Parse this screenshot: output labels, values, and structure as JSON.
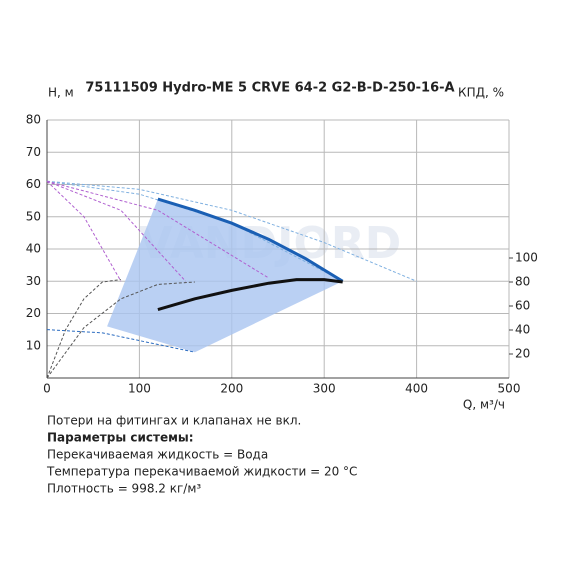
{
  "chart_data": {
    "type": "line",
    "title": "75111509 Hydro-ME 5 CRVE 64-2 G2-B-D-250-16-A",
    "y_label": "H, м",
    "y2_label": "КПД, %",
    "x_label": "Q, м³/ч",
    "watermark": "VANDJORD",
    "xlim": [
      0,
      500
    ],
    "xticks": [
      0,
      100,
      200,
      300,
      400,
      500
    ],
    "ylim": [
      0,
      80
    ],
    "yticks": [
      10,
      20,
      30,
      40,
      50,
      60,
      70,
      80
    ],
    "y2lim": [
      0,
      215
    ],
    "y2ticks": [
      20,
      40,
      60,
      80,
      100
    ],
    "grid": true,
    "area": {
      "color": "#a9c4f0",
      "x": [
        120,
        160,
        200,
        240,
        280,
        320,
        160,
        65
      ],
      "values": [
        55.5,
        52,
        48,
        43,
        37,
        30,
        8,
        16
      ]
    },
    "series": [
      {
        "color": "#7fb0e0",
        "x": [
          0,
          100,
          200,
          300,
          400
        ],
        "values": [
          61,
          58.5,
          52,
          42,
          30
        ]
      },
      {
        "color": "#7fb0e0",
        "x": [
          0,
          100,
          200,
          280,
          320
        ],
        "values": [
          61,
          57,
          48,
          36,
          30
        ]
      },
      {
        "color": "#b060d0",
        "x": [
          0,
          40,
          80
        ],
        "values": [
          61,
          50,
          30
        ]
      },
      {
        "color": "#b060d0",
        "x": [
          0,
          80,
          150
        ],
        "values": [
          61,
          52,
          30
        ]
      },
      {
        "color": "#b060d0",
        "x": [
          0,
          120,
          240
        ],
        "values": [
          61,
          52,
          31
        ]
      },
      {
        "color": "#2a6bc0",
        "x": [
          0,
          60,
          160
        ],
        "values": [
          15,
          14,
          8
        ]
      },
      {
        "color": "#1a5fb4",
        "x": [
          120,
          160,
          200,
          240,
          280,
          320
        ],
        "values": [
          55.5,
          52,
          48,
          43,
          37,
          30
        ]
      },
      {
        "color": "#555555",
        "axis": "y2",
        "x": [
          0,
          20,
          40,
          60,
          80
        ],
        "values": [
          0,
          40,
          66,
          80,
          82
        ]
      },
      {
        "color": "#555555",
        "axis": "y2",
        "x": [
          0,
          40,
          80,
          120,
          160
        ],
        "values": [
          0,
          42,
          66,
          78,
          80
        ]
      },
      {
        "color": "#111111",
        "axis": "y2",
        "x": [
          120,
          160,
          200,
          240,
          270,
          300,
          320
        ],
        "values": [
          57,
          66,
          73,
          79,
          82,
          82,
          80
        ]
      }
    ],
    "notes": [
      "Потери на фитингах и клапанах не вкл.",
      "Параметры системы:",
      "Перекачиваемая жидкость = Вода",
      "Температура перекачиваемой жидкости = 20 °C",
      "Плотность = 998.2 кг/м³"
    ]
  }
}
